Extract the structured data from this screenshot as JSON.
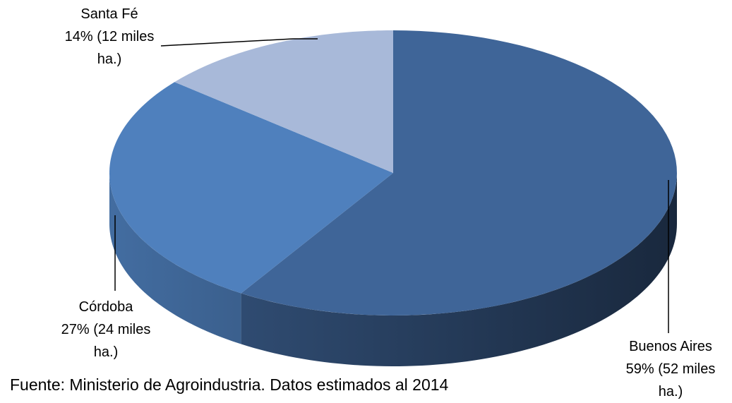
{
  "chart_data": {
    "type": "pie",
    "categories": [
      "Buenos Aires",
      "Córdoba",
      "Santa Fé"
    ],
    "values": [
      59,
      27,
      14
    ],
    "value_labels": [
      "59% (52 miles ha.)",
      "27% (24 miles ha.)",
      "14% (12 miles ha.)"
    ],
    "colors": [
      "#3f6598",
      "#4f80bd",
      "#a8b9d9"
    ],
    "source": "Fuente: Ministerio de Agroindustria. Datos estimados al 2014"
  }
}
